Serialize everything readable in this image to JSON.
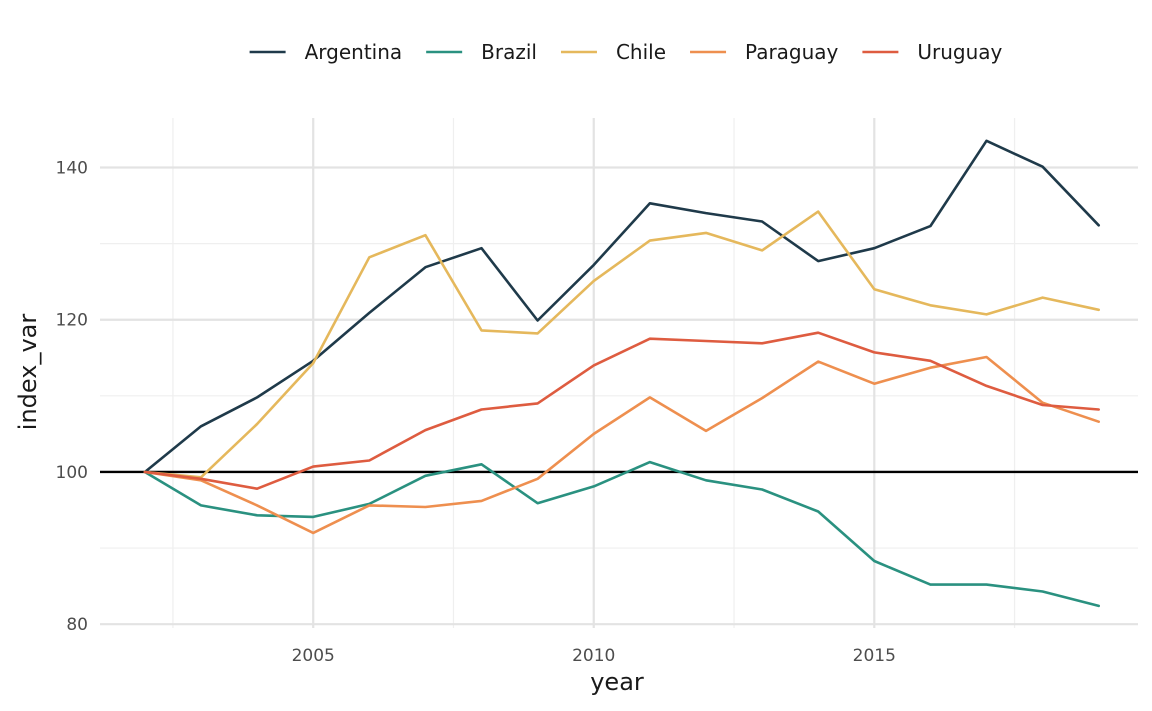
{
  "chart_data": {
    "type": "line",
    "title": "",
    "xlabel": "year",
    "ylabel": "index_var",
    "x": [
      2002,
      2003,
      2004,
      2005,
      2006,
      2007,
      2008,
      2009,
      2010,
      2011,
      2012,
      2013,
      2014,
      2015,
      2016,
      2017,
      2018,
      2019
    ],
    "xlim": [
      2001.2,
      2019.7
    ],
    "ylim": [
      79.5,
      146.5
    ],
    "x_ticks": [
      2005,
      2010,
      2015
    ],
    "y_ticks": [
      80,
      100,
      120,
      140
    ],
    "x_tick_labels": [
      "2005",
      "2010",
      "2015"
    ],
    "y_tick_labels": [
      "80",
      "100",
      "120",
      "140"
    ],
    "reference_line": 100,
    "grid": true,
    "legend_position": "top",
    "series": [
      {
        "name": "Argentina",
        "color": "#1f3a4a",
        "values": [
          100,
          106,
          109.8,
          114.6,
          120.9,
          126.9,
          129.4,
          119.9,
          127.2,
          135.3,
          134,
          132.9,
          127.7,
          129.4,
          132.3,
          143.5,
          140.1,
          132.4
        ]
      },
      {
        "name": "Brazil",
        "color": "#2a9180",
        "values": [
          100,
          95.6,
          94.3,
          94.1,
          95.8,
          99.5,
          101,
          95.9,
          98.1,
          101.3,
          98.9,
          97.7,
          94.8,
          88.3,
          85.2,
          85.2,
          84.3,
          82.4
        ]
      },
      {
        "name": "Chile",
        "color": "#e5b85c",
        "values": [
          100,
          99.3,
          106.3,
          114.3,
          128.2,
          131.1,
          118.6,
          118.2,
          125.1,
          130.4,
          131.4,
          129.1,
          134.2,
          124,
          121.9,
          120.7,
          122.9,
          121.3
        ]
      },
      {
        "name": "Paraguay",
        "color": "#ee8f4f",
        "values": [
          100,
          98.9,
          95.6,
          92,
          95.6,
          95.4,
          96.2,
          99.1,
          105,
          109.8,
          105.4,
          109.7,
          114.5,
          111.6,
          113.7,
          115.1,
          109.1,
          106.6
        ]
      },
      {
        "name": "Uruguay",
        "color": "#de5c40",
        "values": [
          100,
          99.1,
          97.8,
          100.7,
          101.5,
          105.5,
          108.2,
          109,
          114,
          117.5,
          117.2,
          116.9,
          118.3,
          115.7,
          114.6,
          111.3,
          108.8,
          108.2
        ]
      }
    ]
  }
}
